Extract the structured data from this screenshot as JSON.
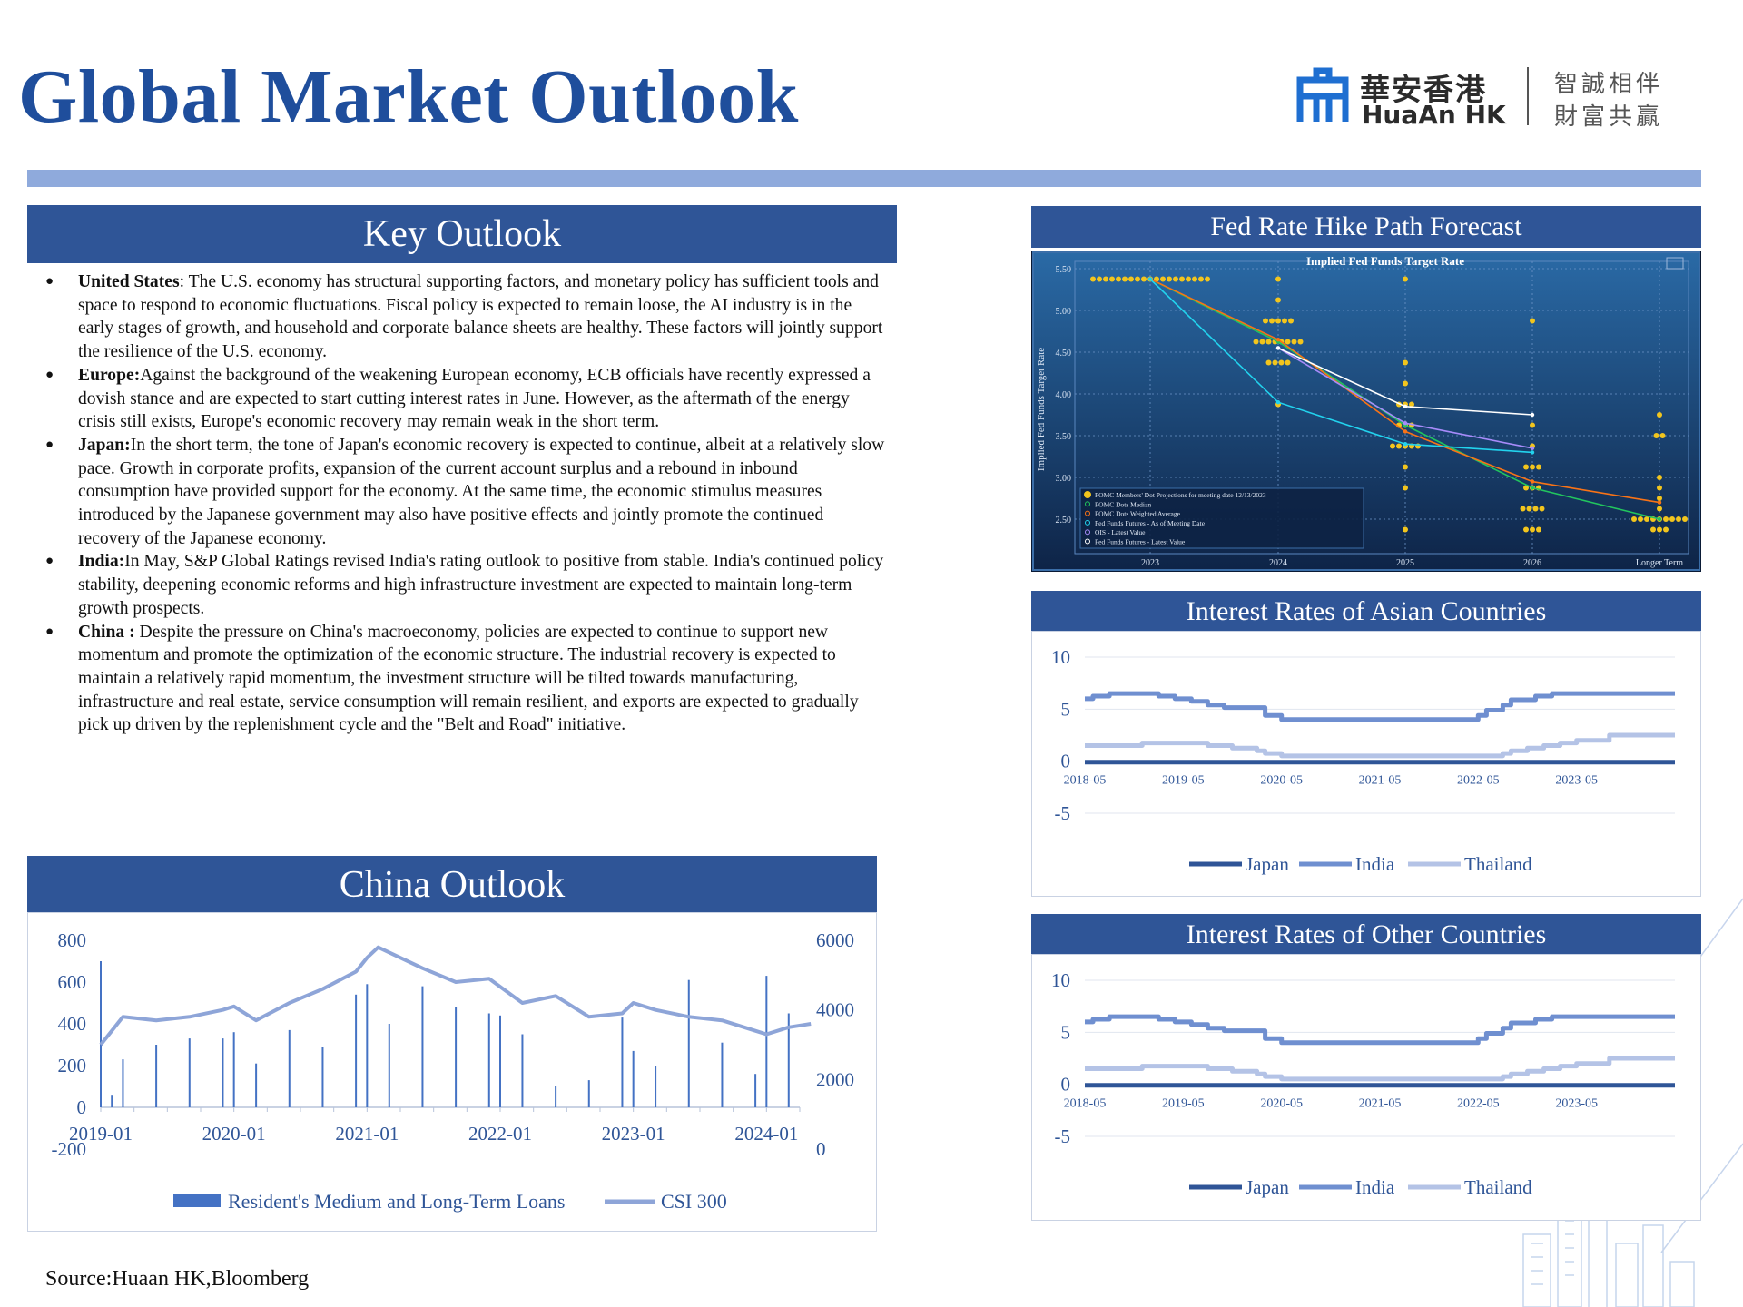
{
  "page": {
    "title": "Global Market Outlook",
    "source": "Source:Huaan HK,Bloomberg"
  },
  "logo": {
    "cn_name": "華安香港",
    "en_name": "HuaAn HK",
    "slogan_line1": "智誠相伴",
    "slogan_line2": "財富共贏",
    "accent_color": "#1f6fd1"
  },
  "key_outlook": {
    "title": "Key Outlook",
    "items": [
      {
        "label": "United States",
        "sep": ": ",
        "text": "The U.S. economy has structural supporting factors, and monetary policy has sufficient tools and space to respond to economic fluctuations. Fiscal policy is expected to remain loose, the AI industry is in the early stages of growth, and household and corporate balance sheets are healthy. These factors will jointly support the resilience of the U.S. economy."
      },
      {
        "label": "Europe:",
        "sep": "",
        "text": "Against the background of the weakening European economy, ECB officials have recently expressed a dovish stance and are expected to start cutting interest rates in June. However, as the aftermath of the energy crisis still exists, Europe's economic recovery may remain weak in the short term."
      },
      {
        "label": "Japan:",
        "sep": "",
        "text": "In the short term, the tone of Japan's economic recovery is expected to continue, albeit at a relatively slow pace. Growth in corporate profits, expansion of the current account surplus and a rebound in inbound consumption have provided support for the economy. At the same time, the economic stimulus measures introduced by the Japanese government may also have positive effects and jointly promote the continued recovery of the Japanese economy."
      },
      {
        "label": "India:",
        "sep": "",
        "text": "In May, S&P Global Ratings revised India's rating outlook to positive from stable. India's continued policy stability, deepening economic reforms and high infrastructure investment are expected to maintain long-term growth prospects."
      },
      {
        "label": "China :",
        "sep": " ",
        "text": "Despite the pressure on China's macroeconomy, policies are expected to continue to support new momentum and promote the optimization of the economic structure. The industrial recovery is expected to maintain a relatively rapid momentum, the investment structure will be tilted towards manufacturing, infrastructure and real estate, service consumption will remain resilient, and exports are expected to gradually pick up driven by the replenishment cycle and the \"Belt and Road\" initiative."
      }
    ]
  },
  "china_outlook": {
    "title": "China Outlook"
  },
  "fed_panel": {
    "title": "Fed Rate Hike Path Forecast"
  },
  "asia_panel": {
    "title": "Interest Rates of Asian Countries"
  },
  "other_panel": {
    "title": "Interest Rates of Other Countries"
  },
  "chart_data": [
    {
      "id": "china",
      "type": "bar",
      "title": "",
      "x_ticks": [
        "2019-01",
        "2020-01",
        "2021-01",
        "2022-01",
        "2023-01",
        "2024-01"
      ],
      "y_left": {
        "ticks": [
          "800",
          "600",
          "400",
          "200",
          "0",
          "-200"
        ],
        "range": [
          -200,
          800
        ]
      },
      "y_right": {
        "ticks": [
          "6000",
          "4000",
          "2000",
          "0"
        ],
        "range": [
          0,
          6000
        ]
      },
      "series": [
        {
          "name": "Resident's Medium and Long-Term Loans",
          "type": "bar",
          "axis": "left",
          "color": "#4472c4",
          "x": [
            "2019-01",
            "2019-02",
            "2019-03",
            "2019-06",
            "2019-09",
            "2019-12",
            "2020-01",
            "2020-03",
            "2020-06",
            "2020-09",
            "2020-12",
            "2021-01",
            "2021-03",
            "2021-06",
            "2021-09",
            "2021-12",
            "2022-01",
            "2022-03",
            "2022-06",
            "2022-09",
            "2022-12",
            "2023-01",
            "2023-03",
            "2023-06",
            "2023-09",
            "2023-12",
            "2024-01",
            "2024-03"
          ],
          "values": [
            700,
            60,
            230,
            300,
            330,
            330,
            360,
            210,
            370,
            290,
            540,
            590,
            400,
            580,
            480,
            450,
            440,
            350,
            100,
            130,
            430,
            270,
            200,
            610,
            310,
            160,
            630,
            450
          ]
        },
        {
          "name": "CSI 300",
          "type": "line",
          "axis": "right",
          "color": "#8ea5d8",
          "x": [
            "2019-01",
            "2019-03",
            "2019-06",
            "2019-09",
            "2019-12",
            "2020-01",
            "2020-03",
            "2020-06",
            "2020-09",
            "2020-12",
            "2021-01",
            "2021-02",
            "2021-06",
            "2021-09",
            "2021-12",
            "2022-03",
            "2022-06",
            "2022-09",
            "2022-12",
            "2023-01",
            "2023-03",
            "2023-06",
            "2023-09",
            "2023-12",
            "2024-01",
            "2024-03",
            "2024-05"
          ],
          "values": [
            3000,
            3800,
            3700,
            3800,
            4000,
            4100,
            3700,
            4200,
            4600,
            5100,
            5500,
            5800,
            5200,
            4800,
            4900,
            4200,
            4400,
            3800,
            3900,
            4200,
            4000,
            3800,
            3700,
            3400,
            3300,
            3500,
            3600
          ]
        }
      ],
      "legend": "bottom"
    },
    {
      "id": "fed",
      "type": "scatter",
      "title": "Implied Fed Funds Target Rate",
      "ylabel": "Implied Fed Funds Target Rate",
      "y_ticks": [
        "5.50",
        "5.00",
        "4.50",
        "4.00",
        "3.50",
        "3.00",
        "2.50"
      ],
      "ylim": [
        2.5,
        5.5
      ],
      "x_ticks": [
        "2023",
        "2024",
        "2025",
        "2026",
        "Longer Term"
      ],
      "legend_items": [
        "FOMC Members' Dot Projections for meeting date 12/13/2023",
        "FOMC Dots Median",
        "FOMC Dots Weighted Average",
        "Fed Funds Futures - As of Meeting Date",
        "OIS - Latest Value",
        "Fed Funds Futures - Latest Value"
      ],
      "series": [
        {
          "name": "FOMC Dots Median",
          "color": "#22c55e",
          "x": [
            "2023",
            "2024",
            "2025",
            "2026",
            "Longer Term"
          ],
          "values": [
            5.375,
            4.625,
            3.625,
            2.875,
            2.5
          ]
        },
        {
          "name": "FOMC Dots Weighted Average",
          "color": "#f97316",
          "x": [
            "2023",
            "2024",
            "2025",
            "2026",
            "Longer Term"
          ],
          "values": [
            5.375,
            4.65,
            3.55,
            2.95,
            2.7
          ]
        },
        {
          "name": "Fed Funds Futures - As of Meeting Date",
          "color": "#22d3ee",
          "x": [
            "2023",
            "2024",
            "2025",
            "2026"
          ],
          "values": [
            5.375,
            3.9,
            3.4,
            3.3
          ]
        },
        {
          "name": "OIS - Latest Value",
          "color": "#a78bfa",
          "x": [
            "2024",
            "2025",
            "2026"
          ],
          "values": [
            4.55,
            3.65,
            3.35
          ]
        },
        {
          "name": "Fed Funds Futures - Latest Value",
          "color": "#ffffff",
          "x": [
            "2024",
            "2025",
            "2026"
          ],
          "values": [
            4.55,
            3.85,
            3.75
          ]
        }
      ],
      "dots": [
        {
          "x": "2023",
          "values": [
            5.375,
            5.375,
            5.375,
            5.375,
            5.375,
            5.375,
            5.375,
            5.375,
            5.375,
            5.375,
            5.375,
            5.375,
            5.375,
            5.375,
            5.375,
            5.375,
            5.375,
            5.375,
            5.375
          ]
        },
        {
          "x": "2024",
          "values": [
            5.375,
            5.125,
            4.875,
            4.875,
            4.875,
            4.875,
            4.875,
            4.625,
            4.625,
            4.625,
            4.625,
            4.625,
            4.625,
            4.625,
            4.625,
            4.375,
            4.375,
            4.375,
            4.375,
            3.875
          ]
        },
        {
          "x": "2025",
          "values": [
            5.375,
            4.375,
            4.125,
            3.875,
            3.875,
            3.875,
            3.625,
            3.625,
            3.625,
            3.375,
            3.375,
            3.375,
            3.375,
            3.375,
            3.125,
            2.875,
            2.375
          ]
        },
        {
          "x": "2026",
          "values": [
            4.875,
            3.625,
            3.375,
            3.125,
            3.125,
            3.125,
            2.875,
            2.875,
            2.875,
            2.625,
            2.625,
            2.625,
            2.625,
            2.375,
            2.375,
            2.375
          ]
        },
        {
          "x": "Longer Term",
          "values": [
            3.75,
            3.5,
            3.5,
            3.0,
            2.875,
            2.75,
            2.625,
            2.5,
            2.5,
            2.5,
            2.5,
            2.5,
            2.5,
            2.5,
            2.5,
            2.5,
            2.375,
            2.375,
            2.375
          ]
        }
      ]
    },
    {
      "id": "asia",
      "type": "line",
      "title": "",
      "y_ticks": [
        "10",
        "5",
        "0",
        "-5"
      ],
      "ylim": [
        -5,
        10
      ],
      "x_ticks": [
        "2018-05",
        "2019-05",
        "2020-05",
        "2021-05",
        "2022-05",
        "2023-05"
      ],
      "series": [
        {
          "name": "Japan",
          "color": "#2f5597",
          "x": [
            "2018-05",
            "2019-05",
            "2020-05",
            "2021-05",
            "2022-05",
            "2023-05",
            "2024-05"
          ],
          "values": [
            -0.1,
            -0.1,
            -0.1,
            -0.1,
            -0.1,
            -0.1,
            -0.1
          ]
        },
        {
          "name": "India",
          "color": "#6f8fd0",
          "x": [
            "2018-05",
            "2018-06",
            "2018-08",
            "2019-02",
            "2019-04",
            "2019-06",
            "2019-08",
            "2019-10",
            "2020-03",
            "2020-05",
            "2022-05",
            "2022-06",
            "2022-08",
            "2022-09",
            "2022-12",
            "2023-02",
            "2024-05"
          ],
          "values": [
            6.0,
            6.25,
            6.5,
            6.25,
            6.0,
            5.75,
            5.4,
            5.15,
            4.4,
            4.0,
            4.4,
            4.9,
            5.4,
            5.9,
            6.25,
            6.5,
            6.5
          ]
        },
        {
          "name": "Thailand",
          "color": "#b4c3e6",
          "x": [
            "2018-05",
            "2018-12",
            "2019-08",
            "2019-11",
            "2020-02",
            "2020-03",
            "2020-05",
            "2022-08",
            "2022-09",
            "2022-11",
            "2023-01",
            "2023-03",
            "2023-05",
            "2023-09",
            "2024-05"
          ],
          "values": [
            1.5,
            1.75,
            1.5,
            1.25,
            1.0,
            0.75,
            0.5,
            0.75,
            1.0,
            1.25,
            1.5,
            1.75,
            2.0,
            2.5,
            2.5
          ]
        }
      ],
      "legend": "bottom"
    },
    {
      "id": "other",
      "type": "line",
      "title": "",
      "y_ticks": [
        "10",
        "5",
        "0",
        "-5"
      ],
      "ylim": [
        -5,
        10
      ],
      "x_ticks": [
        "2018-05",
        "2019-05",
        "2020-05",
        "2021-05",
        "2022-05",
        "2023-05"
      ],
      "series": [
        {
          "name": "Japan",
          "color": "#2f5597",
          "x": [
            "2018-05",
            "2019-05",
            "2020-05",
            "2021-05",
            "2022-05",
            "2023-05",
            "2024-05"
          ],
          "values": [
            -0.1,
            -0.1,
            -0.1,
            -0.1,
            -0.1,
            -0.1,
            -0.1
          ]
        },
        {
          "name": "India",
          "color": "#6f8fd0",
          "x": [
            "2018-05",
            "2018-06",
            "2018-08",
            "2019-02",
            "2019-04",
            "2019-06",
            "2019-08",
            "2019-10",
            "2020-03",
            "2020-05",
            "2022-05",
            "2022-06",
            "2022-08",
            "2022-09",
            "2022-12",
            "2023-02",
            "2024-05"
          ],
          "values": [
            6.0,
            6.25,
            6.5,
            6.25,
            6.0,
            5.75,
            5.4,
            5.15,
            4.4,
            4.0,
            4.4,
            4.9,
            5.4,
            5.9,
            6.25,
            6.5,
            6.5
          ]
        },
        {
          "name": "Thailand",
          "color": "#b4c3e6",
          "x": [
            "2018-05",
            "2018-12",
            "2019-08",
            "2019-11",
            "2020-02",
            "2020-03",
            "2020-05",
            "2022-08",
            "2022-09",
            "2022-11",
            "2023-01",
            "2023-03",
            "2023-05",
            "2023-09",
            "2024-05"
          ],
          "values": [
            1.5,
            1.75,
            1.5,
            1.25,
            1.0,
            0.75,
            0.5,
            0.75,
            1.0,
            1.25,
            1.5,
            1.75,
            2.0,
            2.5,
            2.5
          ]
        }
      ],
      "legend": "bottom"
    }
  ]
}
